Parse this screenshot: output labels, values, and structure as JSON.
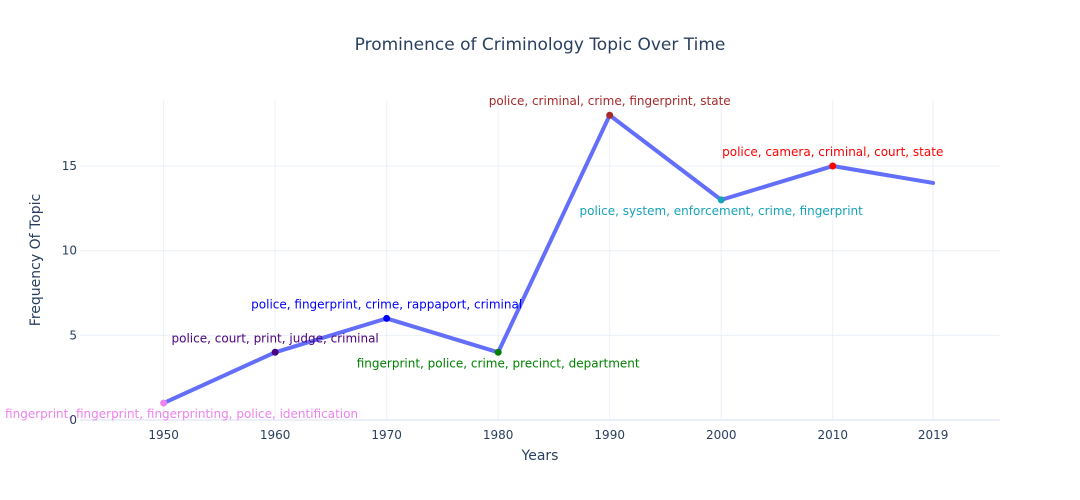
{
  "chart_data": {
    "type": "line",
    "title": "Prominence of Criminology Topic Over Time",
    "xlabel": "Years",
    "ylabel": "Frequency Of Topic",
    "x_tick_labels": [
      "1950",
      "1960",
      "1970",
      "1980",
      "1990",
      "2000",
      "2010",
      "2019"
    ],
    "y_tick_labels": [
      "0",
      "5",
      "10",
      "15"
    ],
    "y_ticks": [
      0,
      5,
      10,
      15
    ],
    "xlim": [
      1942.5,
      2025
    ],
    "ylim": [
      0,
      18.9
    ],
    "grid": true,
    "line_color": "#636efa",
    "x": [
      1950,
      1960,
      1970,
      1980,
      1990,
      2000,
      2010,
      2019
    ],
    "y": [
      1,
      4,
      6,
      4,
      18,
      13,
      15,
      14
    ],
    "annotations": [
      {
        "x": 1950,
        "y": 1,
        "text": "print, fingerprint, fingerprint, fingerprinting, police, identification",
        "color": "#ee82ee",
        "position": "bottom"
      },
      {
        "x": 1960,
        "y": 4,
        "text": "police, court, print, judge, criminal",
        "color": "#4b0082",
        "position": "top"
      },
      {
        "x": 1970,
        "y": 6,
        "text": "police, fingerprint, crime, rappaport, criminal",
        "color": "#0000ff",
        "position": "top"
      },
      {
        "x": 1980,
        "y": 4,
        "text": "fingerprint, police, crime, precinct, department",
        "color": "#008000",
        "position": "bottom"
      },
      {
        "x": 1990,
        "y": 18,
        "text": "police, criminal, crime, fingerprint, state",
        "color": "#a52a2a",
        "position": "top"
      },
      {
        "x": 2000,
        "y": 13,
        "text": "police, system, enforcement, crime, fingerprint",
        "color": "#17a2b8",
        "position": "bottom"
      },
      {
        "x": 2010,
        "y": 15,
        "text": "police, camera, criminal, court, state",
        "color": "#ff0000",
        "position": "top"
      }
    ]
  }
}
